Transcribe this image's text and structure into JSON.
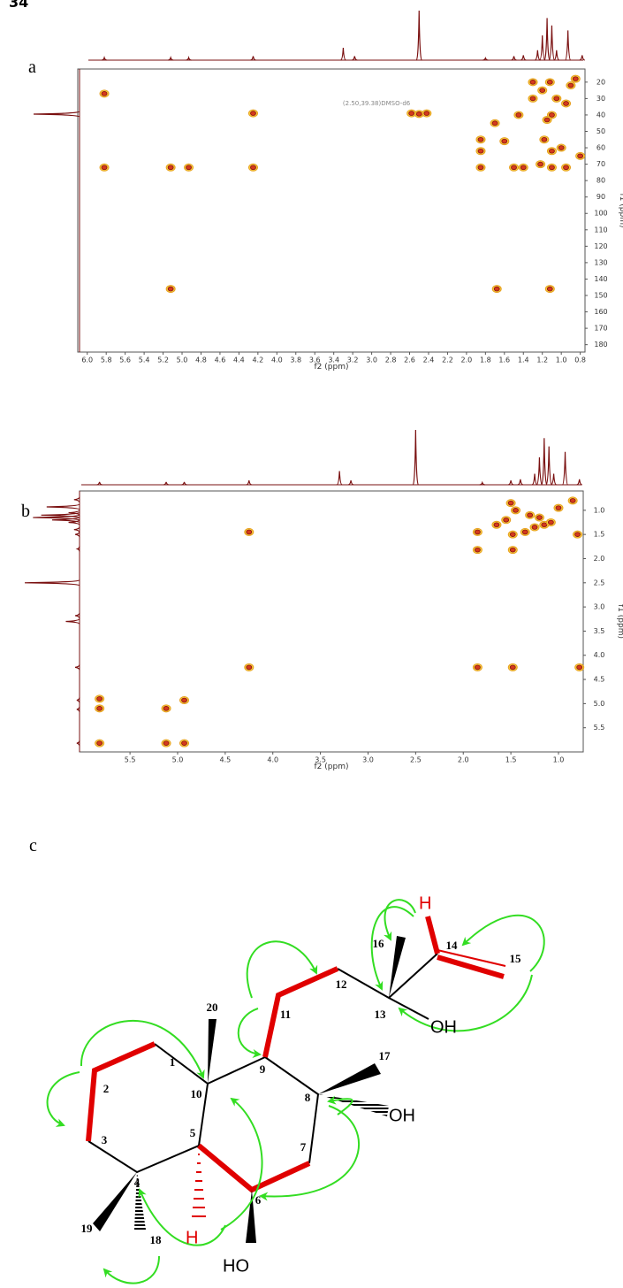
{
  "page_number": "34",
  "proton_spectrum": {
    "ppm": [
      5.82,
      5.12,
      4.93,
      4.25,
      3.3,
      3.18,
      2.5,
      1.8,
      1.5,
      1.4,
      1.25,
      1.2,
      1.15,
      1.1,
      1.05,
      0.93,
      0.78
    ],
    "intensity": [
      0.05,
      0.05,
      0.05,
      0.08,
      0.25,
      0.08,
      1.0,
      0.04,
      0.08,
      0.1,
      0.2,
      0.5,
      0.85,
      0.7,
      0.2,
      0.6,
      0.1
    ],
    "color": "#7a1010"
  },
  "carbon_projection": {
    "ppm": [
      39.5
    ],
    "intensity": [
      1.0
    ],
    "color": "#7a1010"
  },
  "hmbc": {
    "label": "a",
    "annotation": "(2.50,39.38)DMSO-d6",
    "x_label": "f2 (ppm)",
    "y_label": "f1 (ppm)",
    "xlim": [
      6.1,
      0.75
    ],
    "xticks": [
      {
        "value": 6,
        "label": "6.0"
      },
      5.8,
      5.6,
      5.4,
      5.2,
      {
        "value": 5,
        "label": "5.0"
      },
      4.8,
      4.6,
      4.4,
      4.2,
      {
        "value": 4,
        "label": "4.0"
      },
      3.8,
      3.6,
      3.4,
      3.2,
      {
        "value": 3,
        "label": "3.0"
      },
      2.8,
      2.6,
      2.4,
      2.2,
      {
        "value": 2,
        "label": "2.0"
      },
      1.8,
      1.6,
      1.4,
      1.2,
      {
        "value": 1,
        "label": "1.0"
      },
      0.8
    ],
    "ylim": [
      12,
      184.5
    ],
    "yticks": [
      20,
      30,
      40,
      50,
      60,
      70,
      80,
      90,
      100,
      110,
      120,
      130,
      140,
      150,
      160,
      170,
      180
    ],
    "peaks": {
      "f2": [
        5.82,
        5.82,
        5.12,
        4.93,
        4.25,
        4.25,
        5.12,
        2.5,
        2.42,
        2.58,
        1.68,
        1.12,
        1.12,
        1.05,
        0.95,
        0.85,
        1.2,
        1.1,
        1.15,
        1.18,
        1.1,
        1.22,
        1.1,
        1.85,
        1.85,
        1.85,
        1.6,
        1.5,
        1.4,
        1.0,
        0.8,
        1.3,
        1.3,
        1.45,
        1.7,
        0.9,
        0.95
      ],
      "f1": [
        27,
        72,
        72,
        72,
        39,
        72,
        146,
        39.4,
        39,
        39,
        146,
        146,
        20,
        30,
        33,
        18,
        25,
        40,
        43,
        55,
        62,
        70,
        72,
        55,
        62,
        72,
        56,
        72,
        72,
        60,
        65,
        30,
        20,
        40,
        45,
        22,
        72
      ]
    }
  },
  "cosy": {
    "label": "b",
    "x_label": "f2 (ppm)",
    "y_label": "f1 (ppm)",
    "xlim": [
      6.03,
      0.74
    ],
    "xticks": [
      5.5,
      {
        "value": 5,
        "label": "5.0"
      },
      4.5,
      {
        "value": 4,
        "label": "4.0"
      },
      3.5,
      {
        "value": 3,
        "label": "3.0"
      },
      2.5,
      {
        "value": 2,
        "label": "2.0"
      },
      1.5,
      {
        "value": 1,
        "label": "1.0"
      }
    ],
    "ylim": [
      0.6,
      6.0
    ],
    "yticks": [
      {
        "value": 1,
        "label": "1.0"
      },
      1.5,
      {
        "value": 2,
        "label": "2.0"
      },
      2.5,
      {
        "value": 3,
        "label": "3.0"
      },
      3.5,
      {
        "value": 4,
        "label": "4.0"
      },
      4.5,
      {
        "value": 5,
        "label": "5.0"
      },
      5.5
    ],
    "peaks": {
      "f2": [
        5.82,
        5.82,
        5.82,
        5.12,
        5.12,
        4.93,
        4.93,
        4.25,
        4.25,
        1.85,
        1.48,
        0.78,
        1.85,
        1.85,
        1.48,
        1.48,
        1.65,
        1.55,
        1.45,
        1.3,
        1.2,
        1.15,
        1.08,
        1.0,
        0.85,
        0.8,
        1.5,
        1.35,
        1.25
      ],
      "f1": [
        4.9,
        5.1,
        5.82,
        5.1,
        5.82,
        4.93,
        5.82,
        1.45,
        4.25,
        4.25,
        4.25,
        4.25,
        1.45,
        1.82,
        1.82,
        1.5,
        1.3,
        1.2,
        1.0,
        1.1,
        1.15,
        1.3,
        1.25,
        0.95,
        0.8,
        1.5,
        0.85,
        1.45,
        1.35
      ]
    }
  },
  "structure": {
    "label": "c",
    "atom_numbers": [
      "1",
      "2",
      "3",
      "4",
      "5",
      "6",
      "7",
      "8",
      "9",
      "10",
      "11",
      "12",
      "13",
      "14",
      "15",
      "16",
      "17",
      "18",
      "19",
      "20"
    ],
    "groups": [
      "H",
      "OH",
      "OH",
      "HO",
      "H"
    ]
  }
}
